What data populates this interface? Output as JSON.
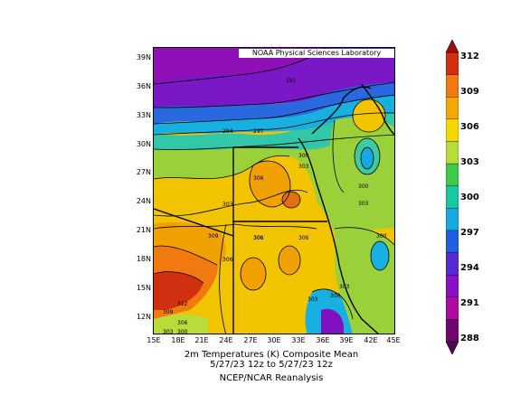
{
  "credit": "NOAA Physical Sciences Laboratory",
  "lat_labels": [
    "39N",
    "36N",
    "33N",
    "30N",
    "27N",
    "24N",
    "21N",
    "18N",
    "15N",
    "12N"
  ],
  "lon_labels": [
    "15E",
    "18E",
    "21E",
    "24E",
    "27E",
    "30E",
    "33E",
    "36E",
    "39E",
    "42E",
    "45E"
  ],
  "caption": {
    "line1": "2m Temperatures (K)   Composite Mean",
    "line2": "5/27/23 12z  to 5/27/23 12z",
    "line3": "NCEP/NCAR Reanalysis"
  },
  "colorbar": {
    "labels": [
      "312",
      "309",
      "306",
      "303",
      "300",
      "297",
      "294",
      "291",
      "288"
    ],
    "colors": [
      "#d03010",
      "#f07a10",
      "#f2a800",
      "#f5d800",
      "#b8dc3a",
      "#40c84a",
      "#18c8a0",
      "#18a8e0",
      "#2060e0",
      "#5828d0",
      "#8a10c8",
      "#b00aa0",
      "#700870"
    ]
  },
  "contour_labels": [
    "291",
    "294",
    "297",
    "300",
    "303",
    "306",
    "303",
    "306",
    "303",
    "300",
    "303",
    "309",
    "306",
    "306",
    "306",
    "300",
    "303",
    "300",
    "312",
    "309",
    "306",
    "303",
    "300"
  ]
}
